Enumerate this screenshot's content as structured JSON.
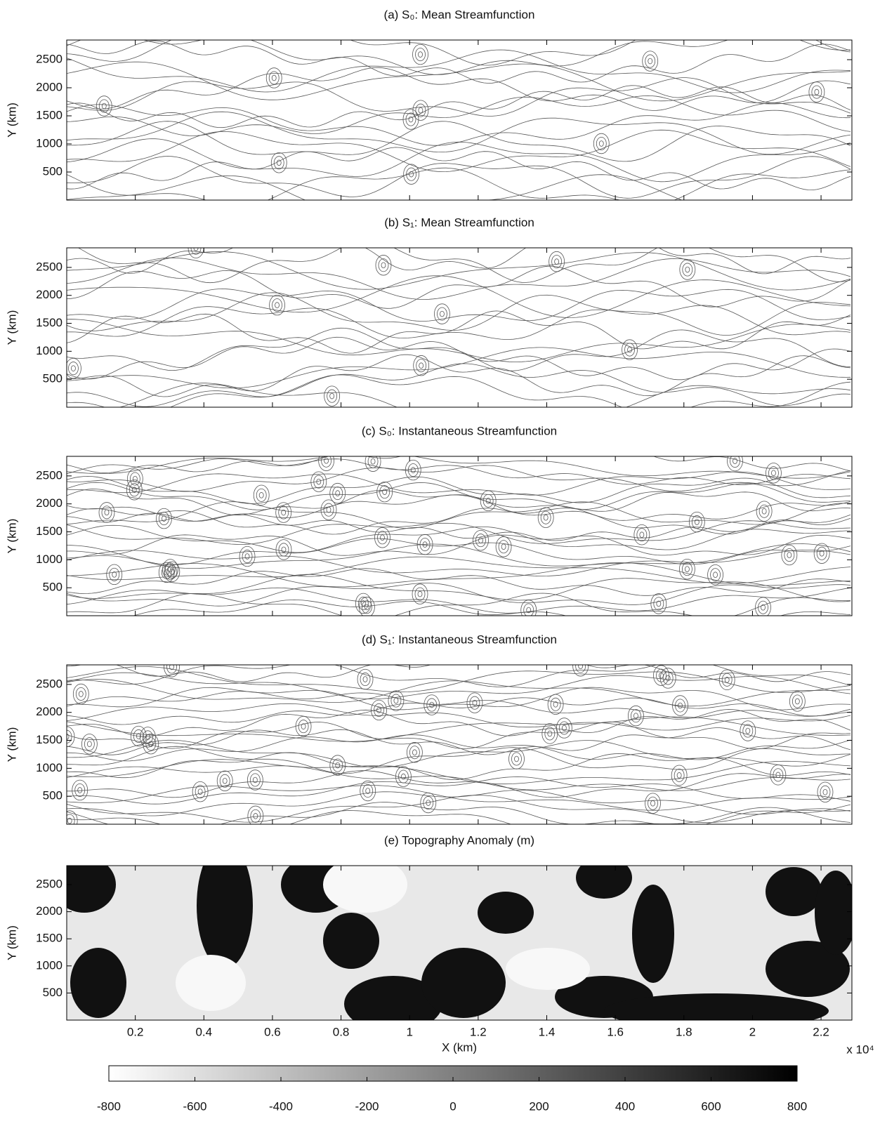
{
  "chart_data": [
    {
      "type": "contour",
      "title": "(a) S₀: Mean Streamfunction",
      "ylabel": "Y (km)",
      "ylim": [
        0,
        2850
      ],
      "yticks": [
        500,
        1000,
        1500,
        2000,
        2500
      ]
    },
    {
      "type": "contour",
      "title": "(b) S₁: Mean Streamfunction",
      "ylabel": "Y (km)",
      "ylim": [
        0,
        2850
      ],
      "yticks": [
        500,
        1000,
        1500,
        2000,
        2500
      ]
    },
    {
      "type": "contour",
      "title": "(c) S₀: Instantaneous Streamfunction",
      "ylabel": "Y (km)",
      "ylim": [
        0,
        2850
      ],
      "yticks": [
        500,
        1000,
        1500,
        2000,
        2500
      ]
    },
    {
      "type": "contour",
      "title": "(d) S₁: Instantaneous Streamfunction",
      "ylabel": "Y (km)",
      "ylim": [
        0,
        2850
      ],
      "yticks": [
        500,
        1000,
        1500,
        2000,
        2500
      ]
    },
    {
      "type": "image",
      "title": "(e) Topography Anomaly (m)",
      "ylabel": "Y (km)",
      "ylim": [
        0,
        2850
      ],
      "yticks": [
        500,
        1000,
        1500,
        2000,
        2500
      ],
      "xlabel": "X (km)",
      "x_multiplier": "x 10⁴",
      "xlim": [
        0,
        2.29
      ],
      "xticks": [
        0.2,
        0.4,
        0.6,
        0.8,
        1.0,
        1.2,
        1.4,
        1.6,
        1.8,
        2.0,
        2.2
      ],
      "colorbar": {
        "clim": [
          -800,
          800
        ],
        "cticks": [
          -800,
          -600,
          -400,
          -200,
          0,
          200,
          400,
          600,
          800
        ]
      }
    }
  ]
}
